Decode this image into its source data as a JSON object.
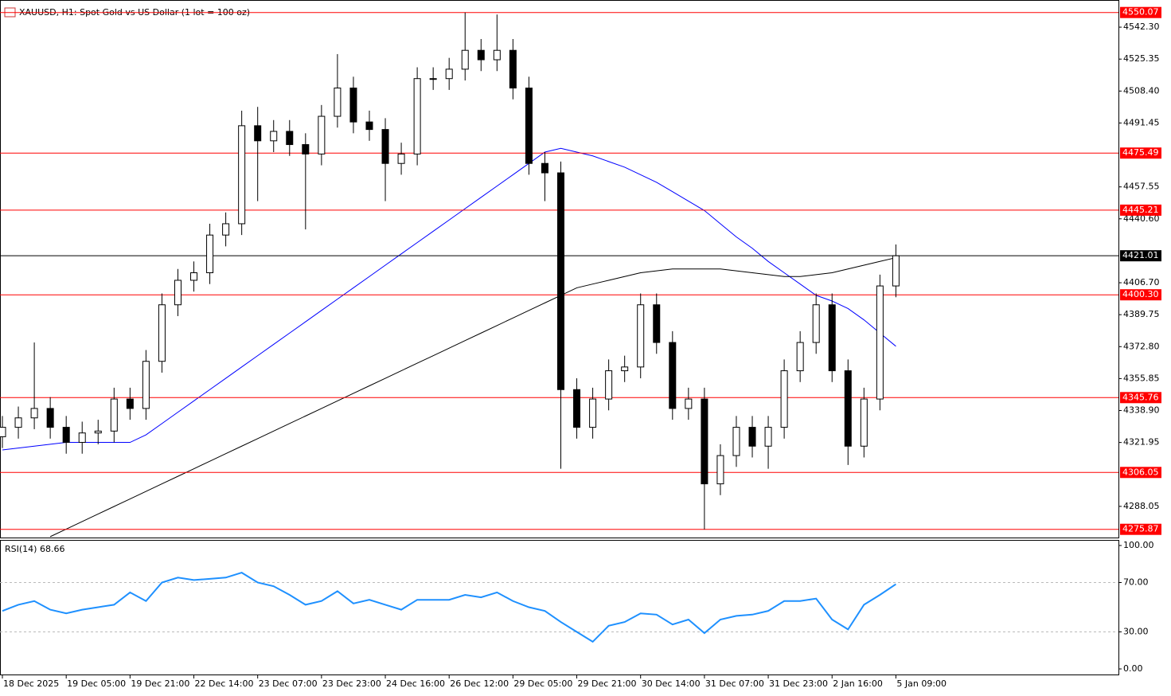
{
  "chart_data": {
    "type": "candlestick",
    "title": "XAUUSD, H1:  Spot Gold vs US Dollar (1 lot = 100 oz)",
    "xticks": [
      {
        "value": 0,
        "label": "18 Dec 2025"
      },
      {
        "value": 4,
        "label": "19 Dec 05:00"
      },
      {
        "value": 8,
        "label": "19 Dec 21:00"
      },
      {
        "value": 12,
        "label": "22 Dec 14:00"
      },
      {
        "value": 16,
        "label": "23 Dec 07:00"
      },
      {
        "value": 20,
        "label": "23 Dec 23:00"
      },
      {
        "value": 24,
        "label": "24 Dec 16:00"
      },
      {
        "value": 28,
        "label": "26 Dec 12:00"
      },
      {
        "value": 32,
        "label": "29 Dec 05:00"
      },
      {
        "value": 36,
        "label": "29 Dec 21:00"
      },
      {
        "value": 40,
        "label": "30 Dec 14:00"
      },
      {
        "value": 44,
        "label": "31 Dec 07:00"
      },
      {
        "value": 48,
        "label": "31 Dec 23:00"
      },
      {
        "value": 52,
        "label": "2 Jan 16:00"
      },
      {
        "value": 56,
        "label": "5 Jan 09:00"
      }
    ],
    "xlim": [
      -0.15,
      69.95
    ],
    "open": [
      4325,
      4330,
      4335,
      4340,
      4330,
      4322,
      4327,
      4328,
      4345,
      4340,
      4365,
      4395,
      4408,
      4412,
      4432,
      4438,
      4490,
      4482,
      4487,
      4480,
      4475,
      4495,
      4510,
      4492,
      4488,
      4470,
      4475,
      4515,
      4515,
      4520,
      4530,
      4525,
      4530,
      4510,
      4470,
      4465,
      4350,
      4330,
      4345,
      4360,
      4362,
      4395,
      4375,
      4340,
      4345,
      4300,
      4315,
      4330,
      4320,
      4330,
      4360,
      4375,
      4395,
      4360,
      4320,
      4345,
      4405
    ],
    "high": [
      4336,
      4341,
      4375,
      4346,
      4336,
      4333,
      4334,
      4351,
      4351,
      4371,
      4401,
      4414,
      4418,
      4438,
      4444,
      4498,
      4500,
      4493,
      4493,
      4486,
      4501,
      4528,
      4516,
      4498,
      4494,
      4481,
      4521,
      4521,
      4526,
      4550.07,
      4536,
      4549,
      4536,
      4516,
      4476,
      4471,
      4356,
      4351,
      4366,
      4368,
      4401,
      4401,
      4381,
      4351,
      4351,
      4321,
      4336,
      4336,
      4336,
      4366,
      4381,
      4401,
      4401,
      4366,
      4351,
      4411,
      4427
    ],
    "low": [
      4319,
      4324,
      4329,
      4324,
      4316,
      4316,
      4321,
      4322,
      4334,
      4334,
      4359,
      4389,
      4402,
      4406,
      4426,
      4432,
      4450,
      4476,
      4474,
      4435,
      4469,
      4489,
      4486,
      4482,
      4450,
      4464,
      4469,
      4509,
      4509,
      4514,
      4519,
      4519,
      4504,
      4464,
      4450,
      4308,
      4324,
      4324,
      4339,
      4354,
      4356,
      4369,
      4334,
      4334,
      4275.87,
      4294,
      4309,
      4314,
      4308,
      4324,
      4354,
      4369,
      4354,
      4310,
      4314,
      4339,
      4399
    ],
    "close": [
      4330,
      4335,
      4340,
      4330,
      4322,
      4327,
      4328,
      4345,
      4340,
      4365,
      4395,
      4408,
      4412,
      4432,
      4438,
      4490,
      4482,
      4487,
      4480,
      4475,
      4495,
      4510,
      4492,
      4488,
      4470,
      4475,
      4515,
      4515,
      4520,
      4530,
      4525,
      4530,
      4510,
      4470,
      4465,
      4350,
      4330,
      4345,
      4360,
      4362,
      4395,
      4375,
      4340,
      4345,
      4300,
      4315,
      4330,
      4320,
      4330,
      4360,
      4375,
      4395,
      4360,
      4320,
      4345,
      4405,
      4421.01
    ],
    "up_color": "#ffffff",
    "down_color": "#000000",
    "ma": [
      {
        "color": "#0000ff",
        "values": [
          4318,
          4319,
          4320,
          4321,
          4322,
          4322,
          4322,
          4322,
          4322,
          4326,
          4332,
          4338,
          4344,
          4350,
          4356,
          4362,
          4368,
          4374,
          4380,
          4386,
          4392,
          4398,
          4404,
          4410,
          4416,
          4422,
          4428,
          4434,
          4440,
          4446,
          4452,
          4458,
          4464,
          4470,
          4476,
          4478,
          4476,
          4474,
          4471,
          4468,
          4464,
          4460,
          4455,
          4450,
          4445,
          4438,
          4431,
          4425,
          4418,
          4412,
          4406,
          4400,
          4397,
          4393,
          4387,
          4380,
          4373
        ]
      },
      {
        "color": "#000000",
        "values": [
          null,
          null,
          null,
          4272,
          4276,
          4280,
          4284,
          4288,
          4292,
          4296,
          4300,
          4304,
          4308,
          4312,
          4316,
          4320,
          4324,
          4328,
          4332,
          4336,
          4340,
          4344,
          4348,
          4352,
          4356,
          4360,
          4364,
          4368,
          4372,
          4376,
          4380,
          4384,
          4388,
          4392,
          4396,
          4400,
          4404,
          4406,
          4408,
          4410,
          4412,
          4413,
          4414,
          4414,
          4414,
          4414,
          4413,
          4412,
          4411,
          4410,
          4410,
          4411,
          4412,
          4414,
          4416,
          4418,
          4420
        ]
      }
    ],
    "ylim": [
      4271.52,
      4556.28
    ],
    "yticks": [
      {
        "value": 4542.3,
        "label": "4542.30"
      },
      4525.35,
      {
        "value": 4508.4,
        "label": "4508.40"
      },
      4491.45,
      4457.55,
      {
        "value": 4440.6,
        "label": "4440.60"
      },
      {
        "value": 4406.7,
        "label": "4406.70"
      },
      4389.75,
      {
        "value": 4372.8,
        "label": "4372.80"
      },
      4355.85,
      {
        "value": 4338.9,
        "label": "4338.90"
      },
      4321.95,
      4288.05
    ],
    "levels": {
      "color": "#ff0000",
      "values": [
        4550.07,
        4475.49,
        4445.21,
        4400.3,
        4345.76,
        4306.05,
        4275.87
      ],
      "labels": [
        "4550.07",
        "4475.49",
        "4445.21",
        "4400.30",
        "4345.76",
        "4306.05",
        "4275.87"
      ]
    },
    "last_price": 4421.01,
    "rsi": {
      "label": "RSI(14) 68.66",
      "color": "#1e90ff",
      "ylim": [
        0,
        100
      ],
      "yticks": [
        {
          "value": 100,
          "label": "100.00"
        },
        {
          "value": 70,
          "label": "70.00"
        },
        {
          "value": 30,
          "label": "30.00"
        },
        {
          "value": 0,
          "label": "0.00"
        }
      ],
      "values": [
        47,
        52,
        55,
        48,
        45,
        48,
        50,
        52,
        62,
        55,
        70,
        74,
        72,
        73,
        74,
        78,
        70,
        67,
        60,
        52,
        55,
        63,
        53,
        56,
        52,
        48,
        56,
        56,
        56,
        60,
        58,
        62,
        55,
        50,
        47,
        38,
        30,
        22,
        35,
        38,
        45,
        44,
        36,
        40,
        29,
        40,
        43,
        44,
        47,
        55,
        55,
        57,
        40,
        32,
        52,
        60,
        68.66
      ]
    }
  }
}
